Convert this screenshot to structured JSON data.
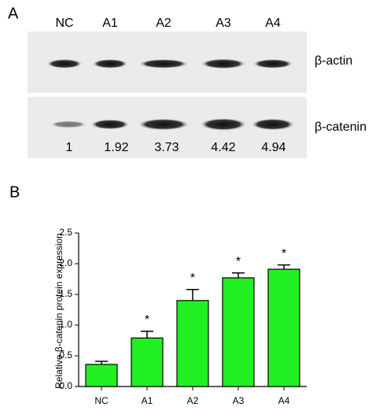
{
  "panel_a": {
    "label": "A",
    "lanes": [
      "NC",
      "A1",
      "A2",
      "A3",
      "A4"
    ],
    "rows": [
      "β-actin",
      "β-catenin"
    ],
    "ratios": [
      1,
      1.92,
      3.73,
      4.42,
      4.94
    ]
  },
  "chart_data": {
    "type": "bar",
    "panel_label": "B",
    "ylabel": "Relative β-catenin protein expression",
    "categories": [
      "NC",
      "A1",
      "A2",
      "A3",
      "A4"
    ],
    "values": [
      0.36,
      0.79,
      1.4,
      1.77,
      1.91
    ],
    "errors": [
      0.05,
      0.11,
      0.18,
      0.08,
      0.07
    ],
    "significance": [
      null,
      "*",
      "*",
      "*",
      "*"
    ],
    "color": "#22f022",
    "ylim": [
      0,
      2.5
    ],
    "yticks": [
      {
        "value": 0,
        "label": "0.0"
      },
      0.5,
      {
        "value": 1,
        "label": "1.0"
      },
      1.5,
      {
        "value": 2,
        "label": "2.0"
      },
      2.5
    ]
  }
}
